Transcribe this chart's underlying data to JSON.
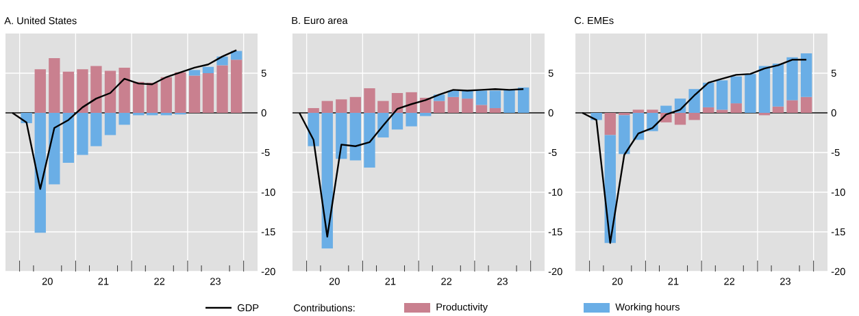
{
  "chart_data": [
    {
      "type": "bar",
      "title": "A. United States",
      "stacked": true,
      "grid": true,
      "xlim": [
        "2019-10-01",
        "2024-04-01"
      ],
      "ylim": [
        -20,
        10
      ],
      "xticks": [
        {
          "value": "2020-01-01",
          "label": null
        },
        {
          "value": "2020-04-01",
          "label": null
        },
        {
          "value": "2020-07-01",
          "label": "20"
        },
        {
          "value": "2020-10-01",
          "label": null
        },
        {
          "value": "2021-01-01",
          "label": null
        },
        {
          "value": "2021-04-01",
          "label": null
        },
        {
          "value": "2021-07-01",
          "label": "21"
        },
        {
          "value": "2021-10-01",
          "label": null
        },
        {
          "value": "2022-01-01",
          "label": null
        },
        {
          "value": "2022-04-01",
          "label": null
        },
        {
          "value": "2022-07-01",
          "label": "22"
        },
        {
          "value": "2022-10-01",
          "label": null
        },
        {
          "value": "2023-01-01",
          "label": null
        },
        {
          "value": "2023-04-01",
          "label": null
        },
        {
          "value": "2023-07-01",
          "label": "23"
        },
        {
          "value": "2023-10-01",
          "label": null
        },
        {
          "value": "2024-01-01",
          "label": null
        }
      ],
      "yticks": [
        -20,
        -15,
        -10,
        -5,
        0,
        5
      ],
      "ref_lines": [
        {
          "axis": "y",
          "value": 0,
          "color": "#000000"
        }
      ],
      "series": [
        {
          "type": "bar",
          "color": "#c9808f",
          "x": [
            "2020-02-15",
            "2020-05-15",
            "2020-08-15",
            "2020-11-15",
            "2021-02-15",
            "2021-05-15",
            "2021-08-15",
            "2021-11-15",
            "2022-02-15",
            "2022-05-15",
            "2022-08-15",
            "2022-11-15",
            "2023-02-15",
            "2023-05-15",
            "2023-08-15",
            "2023-11-15"
          ],
          "values": [
            0,
            5.5,
            6.9,
            5.2,
            5.5,
            5.9,
            5.3,
            5.7,
            3.9,
            3.8,
            4.5,
            5.1,
            4.7,
            5.0,
            6.0,
            6.7
          ]
        },
        {
          "type": "bar",
          "color": "#6aaee6",
          "x": [
            "2020-02-15",
            "2020-05-15",
            "2020-08-15",
            "2020-11-15",
            "2021-02-15",
            "2021-05-15",
            "2021-08-15",
            "2021-11-15",
            "2022-02-15",
            "2022-05-15",
            "2022-08-15",
            "2022-11-15",
            "2023-02-15",
            "2023-05-15",
            "2023-08-15",
            "2023-11-15"
          ],
          "values": [
            -1.3,
            -15.1,
            -9.0,
            -6.3,
            -5.3,
            -4.2,
            -2.8,
            -1.5,
            -0.3,
            -0.3,
            -0.3,
            -0.2,
            0.7,
            0.8,
            1.1,
            1.1
          ]
        },
        {
          "type": "line",
          "color": "#000000",
          "x": [
            "2019-11-15",
            "2020-02-15",
            "2020-05-15",
            "2020-08-15",
            "2020-11-15",
            "2021-02-15",
            "2021-05-15",
            "2021-08-15",
            "2021-11-15",
            "2022-02-15",
            "2022-05-15",
            "2022-08-15",
            "2022-11-15",
            "2023-02-15",
            "2023-05-15",
            "2023-08-15",
            "2023-11-15"
          ],
          "values": [
            0,
            -1.2,
            -9.6,
            -1.9,
            -0.9,
            0.7,
            1.8,
            2.5,
            4.3,
            3.7,
            3.6,
            4.5,
            5.1,
            5.7,
            6.1,
            7.1,
            7.9
          ]
        }
      ]
    },
    {
      "type": "bar",
      "title": "B. Euro area",
      "stacked": true,
      "grid": true,
      "legend": "bottom",
      "legend_title": "Contributions:",
      "xlim": [
        "2019-10-01",
        "2024-04-01"
      ],
      "ylim": [
        -20,
        10
      ],
      "xticks": [
        {
          "value": "2020-01-01",
          "label": null
        },
        {
          "value": "2020-04-01",
          "label": null
        },
        {
          "value": "2020-07-01",
          "label": "20"
        },
        {
          "value": "2020-10-01",
          "label": null
        },
        {
          "value": "2021-01-01",
          "label": null
        },
        {
          "value": "2021-04-01",
          "label": null
        },
        {
          "value": "2021-07-01",
          "label": "21"
        },
        {
          "value": "2021-10-01",
          "label": null
        },
        {
          "value": "2022-01-01",
          "label": null
        },
        {
          "value": "2022-04-01",
          "label": null
        },
        {
          "value": "2022-07-01",
          "label": "22"
        },
        {
          "value": "2022-10-01",
          "label": null
        },
        {
          "value": "2023-01-01",
          "label": null
        },
        {
          "value": "2023-04-01",
          "label": null
        },
        {
          "value": "2023-07-01",
          "label": "23"
        },
        {
          "value": "2023-10-01",
          "label": null
        },
        {
          "value": "2024-01-01",
          "label": null
        }
      ],
      "yticks": [
        -20,
        -15,
        -10,
        -5,
        0,
        5
      ],
      "ref_lines": [
        {
          "axis": "y",
          "value": 0,
          "color": "#000000"
        }
      ],
      "series": [
        {
          "type": "line",
          "name": "GDP",
          "color": "#000000",
          "x": [
            "2019-11-15",
            "2020-02-15",
            "2020-05-15",
            "2020-08-15",
            "2020-11-15",
            "2021-02-15",
            "2021-05-15",
            "2021-08-15",
            "2021-11-15",
            "2022-02-15",
            "2022-05-15",
            "2022-08-15",
            "2022-11-15",
            "2023-02-15",
            "2023-05-15",
            "2023-08-15",
            "2023-11-15"
          ],
          "values": [
            0,
            -3.4,
            -15.6,
            -4.0,
            -4.2,
            -3.7,
            -1.6,
            0.5,
            1.1,
            1.6,
            2.3,
            2.9,
            2.8,
            2.9,
            3.0,
            2.9,
            3.0
          ]
        },
        {
          "type": "bar",
          "name": "Productivity",
          "color": "#c9808f",
          "x": [
            "2020-02-15",
            "2020-05-15",
            "2020-08-15",
            "2020-11-15",
            "2021-02-15",
            "2021-05-15",
            "2021-08-15",
            "2021-11-15",
            "2022-02-15",
            "2022-05-15",
            "2022-08-15",
            "2022-11-15",
            "2023-02-15",
            "2023-05-15",
            "2023-08-15",
            "2023-11-15"
          ],
          "values": [
            0.6,
            1.5,
            1.7,
            2.0,
            3.1,
            1.5,
            2.5,
            2.6,
            1.9,
            1.5,
            2.0,
            1.8,
            1.0,
            0.6,
            0,
            0
          ]
        },
        {
          "type": "bar",
          "name": "Working hours",
          "color": "#6aaee6",
          "x": [
            "2020-02-15",
            "2020-05-15",
            "2020-08-15",
            "2020-11-15",
            "2021-02-15",
            "2021-05-15",
            "2021-08-15",
            "2021-11-15",
            "2022-02-15",
            "2022-05-15",
            "2022-08-15",
            "2022-11-15",
            "2023-02-15",
            "2023-05-15",
            "2023-08-15",
            "2023-11-15"
          ],
          "values": [
            -4.2,
            -17.1,
            -5.8,
            -6.0,
            -6.9,
            -3.1,
            -2.1,
            -1.7,
            -0.4,
            0.8,
            0.8,
            1.0,
            1.8,
            2.2,
            2.9,
            3.2
          ]
        }
      ]
    },
    {
      "type": "bar",
      "title": "C. EMEs",
      "stacked": true,
      "grid": true,
      "xlim": [
        "2019-10-01",
        "2024-04-01"
      ],
      "ylim": [
        -20,
        10
      ],
      "xticks": [
        {
          "value": "2020-01-01",
          "label": null
        },
        {
          "value": "2020-04-01",
          "label": null
        },
        {
          "value": "2020-07-01",
          "label": "20"
        },
        {
          "value": "2020-10-01",
          "label": null
        },
        {
          "value": "2021-01-01",
          "label": null
        },
        {
          "value": "2021-04-01",
          "label": null
        },
        {
          "value": "2021-07-01",
          "label": "21"
        },
        {
          "value": "2021-10-01",
          "label": null
        },
        {
          "value": "2022-01-01",
          "label": null
        },
        {
          "value": "2022-04-01",
          "label": null
        },
        {
          "value": "2022-07-01",
          "label": "22"
        },
        {
          "value": "2022-10-01",
          "label": null
        },
        {
          "value": "2023-01-01",
          "label": null
        },
        {
          "value": "2023-04-01",
          "label": null
        },
        {
          "value": "2023-07-01",
          "label": "23"
        },
        {
          "value": "2023-10-01",
          "label": null
        },
        {
          "value": "2024-01-01",
          "label": null
        }
      ],
      "yticks": [
        -20,
        -15,
        -10,
        -5,
        0,
        5
      ],
      "ref_lines": [
        {
          "axis": "y",
          "value": 0,
          "color": "#000000"
        }
      ],
      "series": [
        {
          "type": "bar",
          "color": "#c9808f",
          "x": [
            "2020-02-15",
            "2020-05-15",
            "2020-08-15",
            "2020-11-15",
            "2021-02-15",
            "2021-05-15",
            "2021-08-15",
            "2021-11-15",
            "2022-02-15",
            "2022-05-15",
            "2022-08-15",
            "2022-11-15",
            "2023-02-15",
            "2023-05-15",
            "2023-08-15",
            "2023-11-15"
          ],
          "values": [
            0,
            -2.8,
            -0.3,
            0.4,
            0.4,
            -1.2,
            -1.5,
            -0.9,
            0.7,
            0.4,
            1.2,
            0,
            -0.3,
            0.8,
            1.6,
            2.0
          ]
        },
        {
          "type": "bar",
          "color": "#6aaee6",
          "x": [
            "2020-02-15",
            "2020-05-15",
            "2020-08-15",
            "2020-11-15",
            "2021-02-15",
            "2021-05-15",
            "2021-08-15",
            "2021-11-15",
            "2022-02-15",
            "2022-05-15",
            "2022-08-15",
            "2022-11-15",
            "2023-02-15",
            "2023-05-15",
            "2023-08-15",
            "2023-11-15"
          ],
          "values": [
            -0.9,
            -13.6,
            -4.9,
            -3.4,
            -2.3,
            0.9,
            1.8,
            3.0,
            3.1,
            3.7,
            3.4,
            4.9,
            5.9,
            5.4,
            5.4,
            5.5
          ]
        },
        {
          "type": "line",
          "color": "#000000",
          "x": [
            "2019-11-15",
            "2020-02-15",
            "2020-05-15",
            "2020-08-15",
            "2020-11-15",
            "2021-02-15",
            "2021-05-15",
            "2021-08-15",
            "2021-11-15",
            "2022-02-15",
            "2022-05-15",
            "2022-08-15",
            "2022-11-15",
            "2023-02-15",
            "2023-05-15",
            "2023-08-15",
            "2023-11-15"
          ],
          "values": [
            0,
            -0.9,
            -16.4,
            -5.3,
            -2.6,
            -1.9,
            -0.2,
            0.4,
            2.2,
            3.8,
            4.3,
            4.8,
            4.9,
            5.6,
            6.0,
            6.7,
            6.7
          ]
        }
      ]
    }
  ]
}
